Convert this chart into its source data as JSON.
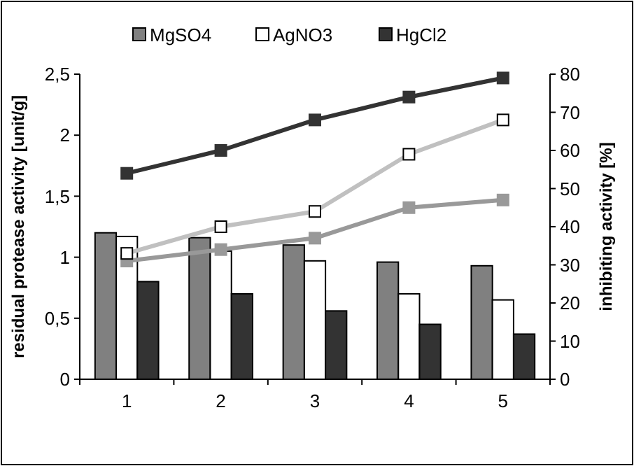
{
  "chart_data": {
    "type": "bar",
    "categories": [
      "1",
      "2",
      "3",
      "4",
      "5"
    ],
    "ylabel": "residual protease activity [unit/g]",
    "y2label": "inhibiting activity [%]",
    "ylim": [
      0,
      2.5
    ],
    "yticks": [
      0,
      {
        "value": 0.5,
        "label": "0,5"
      },
      1,
      {
        "value": 1.5,
        "label": "1,5"
      },
      2,
      {
        "value": 2.5,
        "label": "2,5"
      }
    ],
    "y2lim": [
      0,
      80
    ],
    "y2ticks": [
      0,
      10,
      20,
      30,
      40,
      50,
      60,
      70,
      80
    ],
    "legend": "top",
    "grid": false,
    "series": [
      {
        "name": "MgSO4",
        "color": "#808080",
        "values": [
          1.2,
          1.16,
          1.1,
          0.96,
          0.93
        ]
      },
      {
        "name": "AgNO3",
        "color": "#ffffff",
        "values": [
          1.17,
          1.05,
          0.97,
          0.7,
          0.65
        ]
      },
      {
        "name": "HgCl2",
        "color": "#333333",
        "values": [
          0.8,
          0.7,
          0.56,
          0.45,
          0.37
        ]
      },
      {
        "type": "line",
        "axis": "y2",
        "marker": "square",
        "color": "#999999",
        "values": [
          31,
          34,
          37,
          45,
          47
        ]
      },
      {
        "type": "line",
        "axis": "y2",
        "marker": "square",
        "color": "#c0c0c0",
        "values": [
          33,
          40,
          44,
          59,
          68
        ]
      },
      {
        "type": "line",
        "axis": "y2",
        "marker": "square",
        "color": "#333333",
        "values": [
          54,
          60,
          68,
          74,
          79
        ]
      }
    ]
  }
}
